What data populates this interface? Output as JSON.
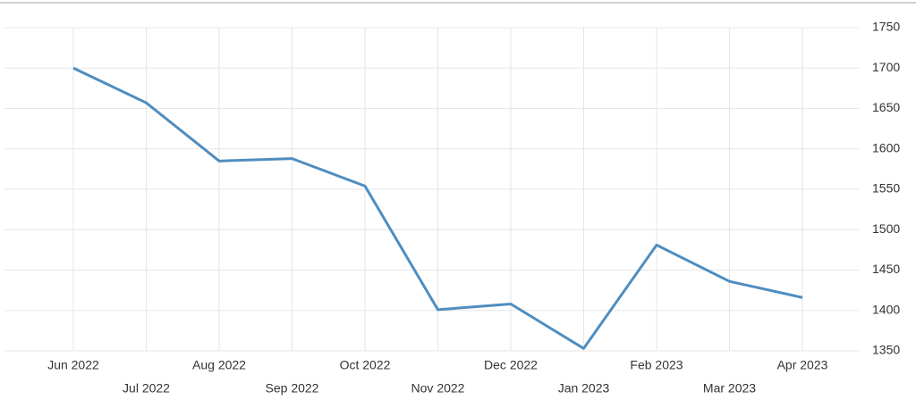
{
  "chart_data": {
    "type": "line",
    "categories": [
      "Jun 2022",
      "Jul 2022",
      "Aug 2022",
      "Sep 2022",
      "Oct 2022",
      "Nov 2022",
      "Dec 2022",
      "Jan 2023",
      "Feb 2023",
      "Mar 2023",
      "Apr 2023"
    ],
    "values": [
      1700,
      1657,
      1585,
      1588,
      1554,
      1401,
      1408,
      1353,
      1481,
      1436,
      1416
    ],
    "color": "#4f8dbf",
    "ylim": [
      1350,
      1750
    ],
    "yticks": [
      1350,
      1400,
      1450,
      1500,
      1550,
      1600,
      1650,
      1700,
      1750
    ],
    "grid": true
  }
}
